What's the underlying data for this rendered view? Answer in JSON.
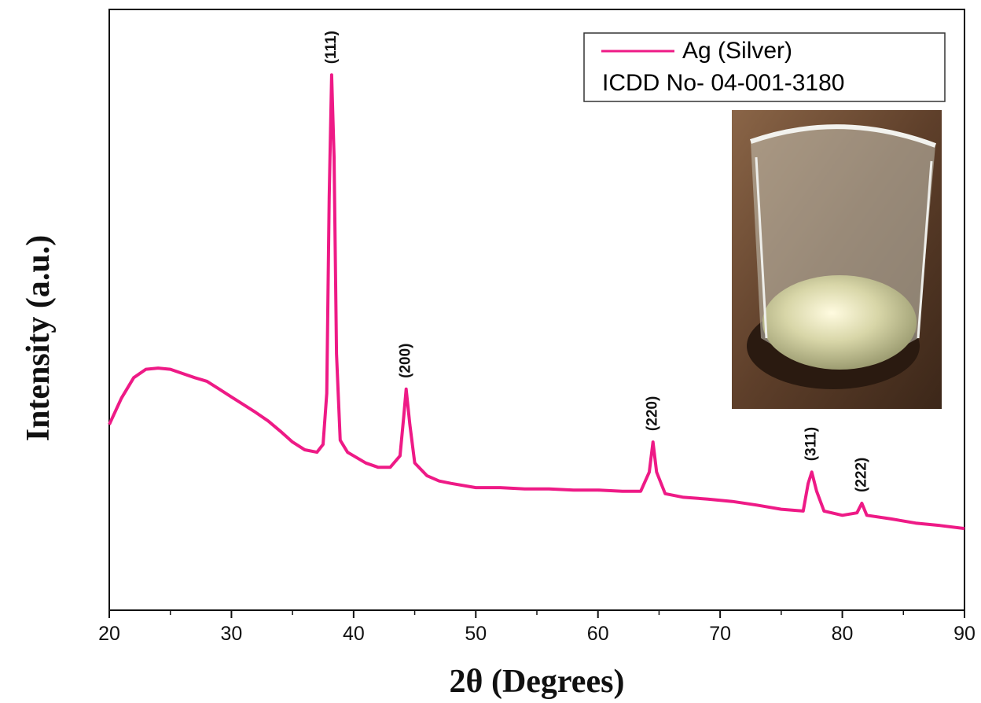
{
  "chart_data": {
    "type": "line",
    "x_label": "2θ (Degrees)",
    "y_label": "Intensity (a.u.)",
    "x": [
      20,
      21,
      22,
      23,
      24,
      25,
      26,
      27,
      28,
      29,
      30,
      31,
      32,
      33,
      34,
      35,
      36,
      37,
      37.5,
      37.8,
      38.0,
      38.2,
      38.4,
      38.6,
      38.9,
      39.5,
      40,
      41,
      42,
      43,
      43.8,
      44.1,
      44.3,
      44.6,
      45,
      46,
      47,
      48,
      50,
      52,
      54,
      56,
      58,
      60,
      62,
      63.5,
      64.2,
      64.5,
      64.8,
      65.5,
      67,
      69,
      71,
      73,
      75,
      76.8,
      77.2,
      77.5,
      77.9,
      78.5,
      80,
      81.2,
      81.6,
      82.0,
      84,
      86,
      88,
      90
    ],
    "series": [
      {
        "name": "Ag (Silver)",
        "color": "#ee1a86",
        "values": [
          30.9,
          35.3,
          38.7,
          40.1,
          40.3,
          40.1,
          39.4,
          38.7,
          38.1,
          36.8,
          35.5,
          34.2,
          32.9,
          31.5,
          29.8,
          28.0,
          26.7,
          26.3,
          27.6,
          36.1,
          68.8,
          89.1,
          75.4,
          42.7,
          28.3,
          26.3,
          25.7,
          24.5,
          23.8,
          23.8,
          25.7,
          32.2,
          36.8,
          30.9,
          24.5,
          22.4,
          21.5,
          21.1,
          20.4,
          20.4,
          20.2,
          20.2,
          20.0,
          20.0,
          19.8,
          19.8,
          23.0,
          28.0,
          23.0,
          19.4,
          18.8,
          18.5,
          18.1,
          17.5,
          16.8,
          16.5,
          21.1,
          23.0,
          19.8,
          16.5,
          15.8,
          16.2,
          17.8,
          15.8,
          15.2,
          14.5,
          14.1,
          13.6
        ]
      }
    ],
    "legend_note": "ICDD No- 04-001-3180",
    "annotations": [
      {
        "text": "(111)",
        "x": 38.2
      },
      {
        "text": "(200)",
        "x": 44.3
      },
      {
        "text": "(220)",
        "x": 64.5
      },
      {
        "text": "(311)",
        "x": 77.5
      },
      {
        "text": "(222)",
        "x": 81.6
      }
    ],
    "xlim": [
      20,
      90
    ],
    "ylim": [
      0,
      100
    ],
    "xticks": [
      20,
      30,
      40,
      50,
      60,
      70,
      80,
      90
    ],
    "xminor_ticks": [
      25,
      35,
      45,
      55,
      65,
      75,
      85
    ],
    "grid": false,
    "legend_position": "upper right"
  }
}
